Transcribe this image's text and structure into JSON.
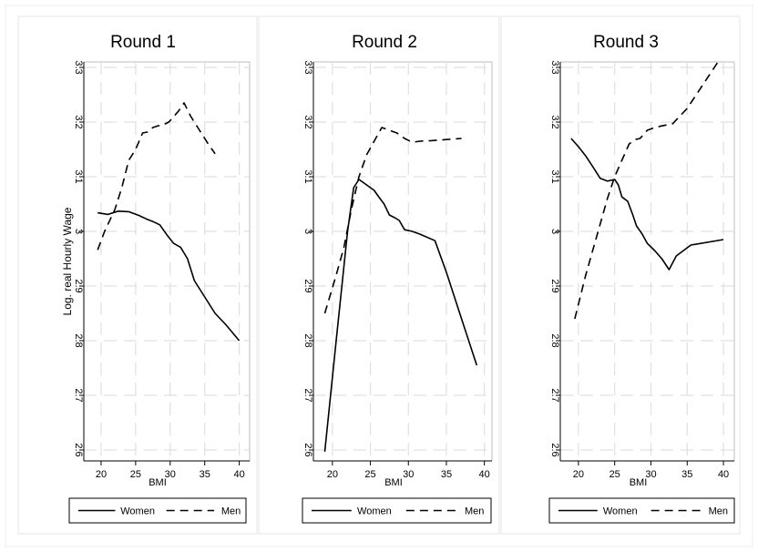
{
  "chart_data": [
    {
      "type": "line",
      "title": "Round 1",
      "xlabel": "BMI",
      "ylabel": "Log. real Hourly Wage",
      "xlim": [
        17.5,
        41.5
      ],
      "ylim": [
        2.58,
        3.31
      ],
      "xticks": [
        20,
        25,
        30,
        35,
        40
      ],
      "yticks": [
        2.6,
        2.7,
        2.8,
        2.9,
        3,
        3.1,
        3.2,
        3.3
      ],
      "grid": true,
      "legend": "bottom",
      "series": [
        {
          "name": "Women",
          "dash": "solid",
          "x": [
            19.5,
            21,
            22.5,
            24,
            25.5,
            26.5,
            27.5,
            28.5,
            29.5,
            30.5,
            31.5,
            32.5,
            33.5,
            35,
            36.5,
            38,
            40
          ],
          "y": [
            3.034,
            3.031,
            3.037,
            3.036,
            3.029,
            3.023,
            3.018,
            3.012,
            2.994,
            2.978,
            2.971,
            2.95,
            2.91,
            2.88,
            2.85,
            2.83,
            2.8
          ]
        },
        {
          "name": "Men",
          "dash": "dashed",
          "x": [
            19.5,
            20.5,
            22,
            23,
            24,
            25,
            26,
            26.8,
            27.5,
            28.2,
            29,
            29.8,
            30.5,
            31.2,
            32,
            33,
            34,
            35.5,
            36.5
          ],
          "y": [
            2.966,
            3.0,
            3.04,
            3.08,
            3.13,
            3.15,
            3.18,
            3.182,
            3.19,
            3.193,
            3.195,
            3.2,
            3.21,
            3.22,
            3.235,
            3.21,
            3.19,
            3.16,
            3.142
          ]
        }
      ]
    },
    {
      "type": "line",
      "title": "Round 2",
      "xlabel": "BMI",
      "ylabel": "",
      "xlim": [
        17.5,
        41.0
      ],
      "ylim": [
        2.58,
        3.31
      ],
      "xticks": [
        20,
        25,
        30,
        35,
        40
      ],
      "yticks": [
        2.6,
        2.7,
        2.8,
        2.9,
        3,
        3.1,
        3.2,
        3.3
      ],
      "grid": true,
      "legend": "bottom",
      "series": [
        {
          "name": "Women",
          "dash": "solid",
          "x": [
            19,
            20.5,
            22,
            22.8,
            23.5,
            24.5,
            25.5,
            26,
            26.8,
            27.5,
            28.2,
            28.8,
            29.5,
            30.5,
            31.5,
            33.5,
            35,
            37,
            39
          ],
          "y": [
            2.597,
            2.8,
            3.0,
            3.08,
            3.095,
            3.085,
            3.075,
            3.065,
            3.05,
            3.03,
            3.025,
            3.02,
            3.003,
            3.0,
            2.995,
            2.983,
            2.925,
            2.84,
            2.755
          ]
        },
        {
          "name": "Men",
          "dash": "dashed",
          "x": [
            19,
            20.5,
            21.5,
            22.5,
            23.5,
            24.5,
            25.5,
            26.5,
            27.5,
            28.5,
            29.5,
            30.5,
            31.5,
            33,
            35,
            37
          ],
          "y": [
            2.85,
            2.92,
            2.97,
            3.04,
            3.1,
            3.14,
            3.165,
            3.19,
            3.185,
            3.18,
            3.17,
            3.163,
            3.165,
            3.166,
            3.168,
            3.17
          ]
        }
      ]
    },
    {
      "type": "line",
      "title": "Round 3",
      "xlabel": "BMI",
      "ylabel": "",
      "xlim": [
        17.5,
        41.5
      ],
      "ylim": [
        2.58,
        3.31
      ],
      "xticks": [
        20,
        25,
        30,
        35,
        40
      ],
      "yticks": [
        2.6,
        2.7,
        2.8,
        2.9,
        3,
        3.1,
        3.2,
        3.3
      ],
      "grid": true,
      "legend": "bottom",
      "series": [
        {
          "name": "Women",
          "dash": "solid",
          "x": [
            19,
            20,
            21,
            22,
            23,
            24,
            25,
            25.5,
            26,
            26.8,
            27.5,
            28,
            28.8,
            29.5,
            30.5,
            31.5,
            32.5,
            33.5,
            35.5,
            40
          ],
          "y": [
            3.17,
            3.155,
            3.138,
            3.118,
            3.097,
            3.092,
            3.095,
            3.085,
            3.063,
            3.055,
            3.03,
            3.01,
            2.995,
            2.978,
            2.965,
            2.95,
            2.93,
            2.955,
            2.975,
            2.985
          ]
        },
        {
          "name": "Men",
          "dash": "dashed",
          "x": [
            19.5,
            21,
            22.5,
            24,
            25,
            26,
            27,
            27.8,
            28.5,
            29.5,
            30.5,
            31.5,
            33,
            35,
            37,
            39.5
          ],
          "y": [
            2.84,
            2.92,
            2.99,
            3.06,
            3.1,
            3.13,
            3.16,
            3.168,
            3.17,
            3.185,
            3.19,
            3.193,
            3.197,
            3.225,
            3.265,
            3.315
          ]
        }
      ]
    }
  ]
}
